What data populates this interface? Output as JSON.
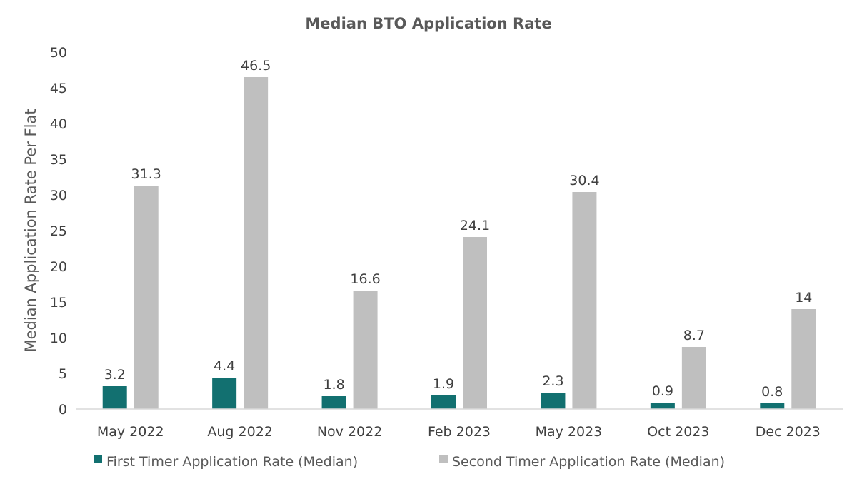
{
  "chart_data": {
    "type": "bar",
    "title": "Median BTO Application Rate",
    "xlabel": "",
    "ylabel": "Median Application Rate Per Flat",
    "ylim": [
      0,
      50
    ],
    "yticks": [
      0,
      5,
      10,
      15,
      20,
      25,
      30,
      35,
      40,
      45,
      50
    ],
    "grid": false,
    "legend_position": "bottom",
    "categories": [
      "May 2022",
      "Aug 2022",
      "Nov 2022",
      "Feb 2023",
      "May 2023",
      "Oct 2023",
      "Dec 2023"
    ],
    "series": [
      {
        "name": "First Timer Application Rate (Median)",
        "color": "#127070",
        "values": [
          3.2,
          4.4,
          1.8,
          1.9,
          2.3,
          0.9,
          0.8
        ],
        "labels": [
          "3.2",
          "4.4",
          "1.8",
          "1.9",
          "2.3",
          "0.9",
          "0.8"
        ]
      },
      {
        "name": "Second Timer Application Rate (Median)",
        "color": "#bfbfbf",
        "values": [
          31.3,
          46.5,
          16.6,
          24.1,
          30.4,
          8.7,
          14
        ],
        "labels": [
          "31.3",
          "46.5",
          "16.6",
          "24.1",
          "30.4",
          "8.7",
          "14"
        ]
      }
    ]
  }
}
